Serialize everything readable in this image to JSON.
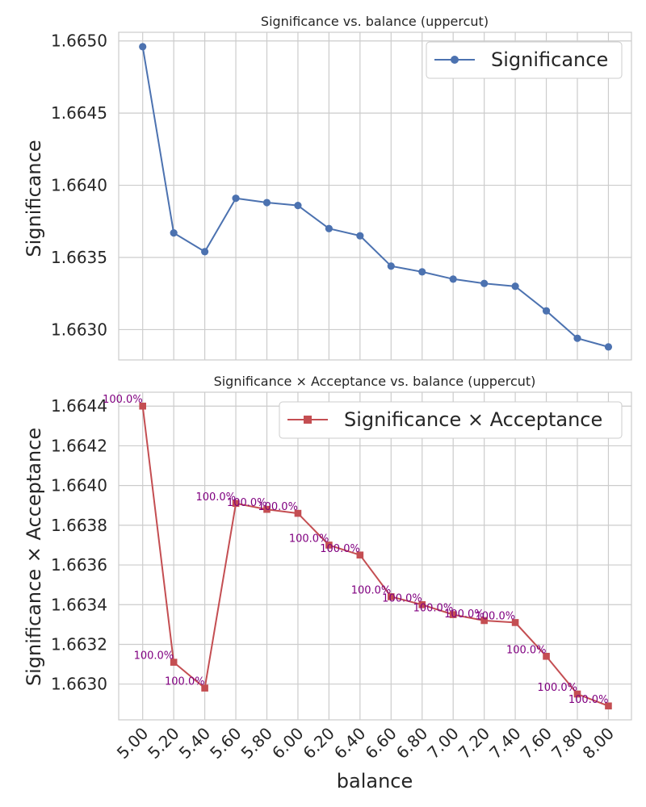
{
  "chart_data": [
    {
      "type": "line",
      "title": "Significance vs. balance (uppercut)",
      "xlabel": "",
      "ylabel": "Significance",
      "x": [
        5.0,
        5.2,
        5.4,
        5.6,
        5.8,
        6.0,
        6.2,
        6.4,
        6.6,
        6.8,
        7.0,
        7.2,
        7.4,
        7.6,
        7.8,
        8.0
      ],
      "ylim": [
        1.66279,
        1.66506
      ],
      "yticks": [
        "1.6630",
        "1.6635",
        "1.6640",
        "1.6645",
        "1.6650"
      ],
      "grid": true,
      "legend": "top-right",
      "series": [
        {
          "name": "Significance",
          "color": "#4c72b0",
          "marker": "circle",
          "values": [
            1.66496,
            1.66367,
            1.66354,
            1.66391,
            1.66388,
            1.66386,
            1.6637,
            1.66365,
            1.66344,
            1.6634,
            1.66335,
            1.66332,
            1.6633,
            1.66313,
            1.66294,
            1.66288
          ]
        }
      ]
    },
    {
      "type": "line",
      "title": "Significance × Acceptance vs. balance (uppercut)",
      "xlabel": "balance",
      "ylabel": "Significance × Acceptance",
      "x": [
        5.0,
        5.2,
        5.4,
        5.6,
        5.8,
        6.0,
        6.2,
        6.4,
        6.6,
        6.8,
        7.0,
        7.2,
        7.4,
        7.6,
        7.8,
        8.0
      ],
      "xticks": [
        "5.00",
        "5.20",
        "5.40",
        "5.60",
        "5.80",
        "6.00",
        "6.20",
        "6.40",
        "6.60",
        "6.80",
        "7.00",
        "7.20",
        "7.40",
        "7.60",
        "7.80",
        "8.00"
      ],
      "ylim": [
        1.66282,
        1.66447
      ],
      "yticks": [
        "1.6630",
        "1.6632",
        "1.6634",
        "1.6636",
        "1.6638",
        "1.6640",
        "1.6642",
        "1.6644"
      ],
      "grid": true,
      "legend": "top-right",
      "series": [
        {
          "name": "Significance × Acceptance",
          "color": "#c44e52",
          "marker": "square",
          "values": [
            1.6644,
            1.66311,
            1.66298,
            1.66391,
            1.66388,
            1.66386,
            1.6637,
            1.66365,
            1.66344,
            1.6634,
            1.66335,
            1.66332,
            1.66331,
            1.66314,
            1.66295,
            1.66289
          ]
        }
      ],
      "annotations": [
        "100.0%",
        "100.0%",
        "100.0%",
        "100.0%",
        "100.0%",
        "100.0%",
        "100.0%",
        "100.0%",
        "100.0%",
        "100.0%",
        "100.0%",
        "100.0%",
        "100.0%",
        "100.0%",
        "100.0%",
        "100.0%"
      ],
      "annotation_color": "#800080"
    }
  ]
}
